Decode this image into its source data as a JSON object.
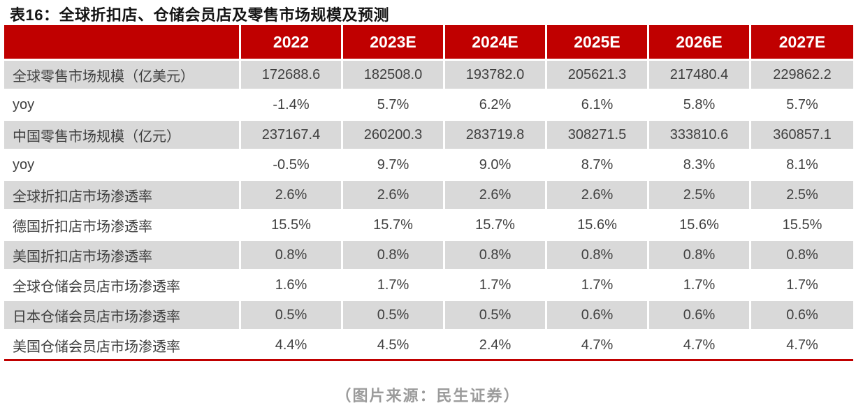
{
  "title": "表16：全球折扣店、仓储会员店及零售市场规模及预测",
  "footer": {
    "source_caption": "（图片来源：民生证券）"
  },
  "colors": {
    "header_bg": "#c00000",
    "row_shade_bg": "#d9d9d9",
    "row_plain_bg": "#ffffff",
    "header_text": "#ffffff",
    "cell_text": "#404040",
    "title_text": "#141414",
    "footer_text": "#9b9b9b",
    "bottom_rule": "#c00000"
  },
  "chart_data": {
    "type": "table",
    "title": "表16：全球折扣店、仓储会员店及零售市场规模及预测",
    "columns": [
      "",
      "2022",
      "2023E",
      "2024E",
      "2025E",
      "2026E",
      "2027E"
    ],
    "rows": [
      {
        "label": "全球零售市场规模（亿美元）",
        "values": [
          "172688.6",
          "182508.0",
          "193782.0",
          "205621.3",
          "217480.4",
          "229862.2"
        ]
      },
      {
        "label": "yoy",
        "values": [
          "-1.4%",
          "5.7%",
          "6.2%",
          "6.1%",
          "5.8%",
          "5.7%"
        ]
      },
      {
        "label": "中国零售市场规模（亿元）",
        "values": [
          "237167.4",
          "260200.3",
          "283719.8",
          "308271.5",
          "333810.6",
          "360857.1"
        ]
      },
      {
        "label": "yoy",
        "values": [
          "-0.5%",
          "9.7%",
          "9.0%",
          "8.7%",
          "8.3%",
          "8.1%"
        ]
      },
      {
        "label": "全球折扣店市场渗透率",
        "values": [
          "2.6%",
          "2.6%",
          "2.6%",
          "2.6%",
          "2.5%",
          "2.5%"
        ]
      },
      {
        "label": "德国折扣店市场渗透率",
        "values": [
          "15.5%",
          "15.7%",
          "15.7%",
          "15.6%",
          "15.6%",
          "15.5%"
        ]
      },
      {
        "label": "美国折扣店市场渗透率",
        "values": [
          "0.8%",
          "0.8%",
          "0.8%",
          "0.8%",
          "0.8%",
          "0.8%"
        ]
      },
      {
        "label": "全球仓储会员店市场渗透率",
        "values": [
          "1.6%",
          "1.7%",
          "1.7%",
          "1.7%",
          "1.7%",
          "1.7%"
        ]
      },
      {
        "label": "日本仓储会员店市场渗透率",
        "values": [
          "0.5%",
          "0.5%",
          "0.5%",
          "0.6%",
          "0.6%",
          "0.6%"
        ]
      },
      {
        "label": "美国仓储会员店市场渗透率",
        "values": [
          "4.4%",
          "4.5%",
          "2.4%",
          "4.7%",
          "4.7%",
          "4.7%"
        ]
      }
    ],
    "source": "民生证券",
    "legend_position": "none",
    "grid": false
  }
}
